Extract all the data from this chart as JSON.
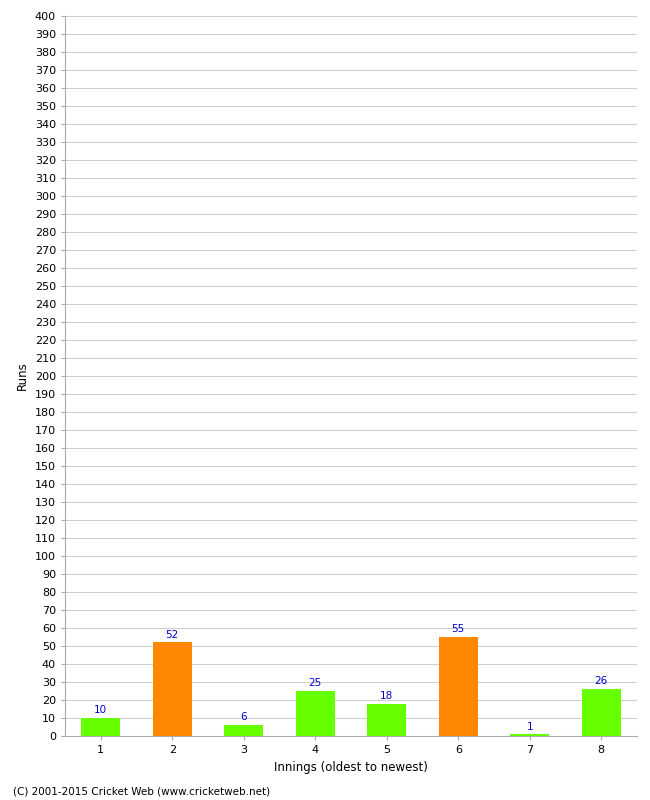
{
  "innings": [
    1,
    2,
    3,
    4,
    5,
    6,
    7,
    8
  ],
  "runs": [
    10,
    52,
    6,
    25,
    18,
    55,
    1,
    26
  ],
  "bar_colors": [
    "#66ff00",
    "#ff8800",
    "#66ff00",
    "#66ff00",
    "#66ff00",
    "#ff8800",
    "#66ff00",
    "#66ff00"
  ],
  "xlabel": "Innings (oldest to newest)",
  "ylabel": "Runs",
  "ylim": [
    0,
    400
  ],
  "ytick_step": 10,
  "background_color": "#ffffff",
  "grid_color": "#cccccc",
  "label_color": "#0000cc",
  "label_fontsize": 7.5,
  "axis_fontsize": 8,
  "xlabel_fontsize": 8.5,
  "ylabel_fontsize": 8.5,
  "footer": "(C) 2001-2015 Cricket Web (www.cricketweb.net)"
}
